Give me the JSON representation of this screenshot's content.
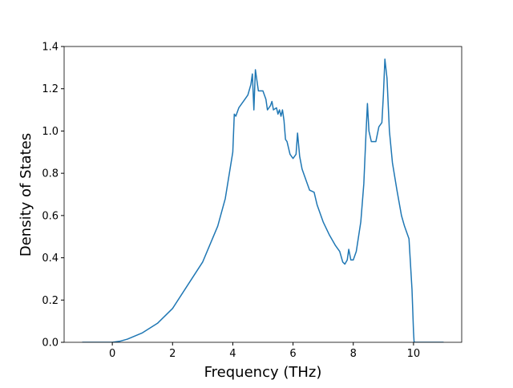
{
  "chart_data": {
    "type": "line",
    "xlabel": "Frequency (THz)",
    "ylabel": "Density of States",
    "xlim": [
      -1.6,
      11.6
    ],
    "ylim": [
      0,
      1.4
    ],
    "xticks": [
      0,
      2,
      4,
      6,
      8,
      10
    ],
    "yticks": [
      {
        "value": 0,
        "label": "0.0"
      },
      {
        "value": 0.2,
        "label": "0.2"
      },
      {
        "value": 0.4,
        "label": "0.4"
      },
      {
        "value": 0.6,
        "label": "0.6"
      },
      {
        "value": 0.8,
        "label": "0.8"
      },
      {
        "value": 1.0,
        "label": "1.0"
      },
      {
        "value": 1.2,
        "label": "1.2"
      },
      {
        "value": 1.4,
        "label": "1.4"
      }
    ],
    "x": [
      -1,
      0,
      0.25,
      0.5,
      1,
      1.5,
      2,
      2.5,
      3,
      3.5,
      3.75,
      4.0,
      4.05,
      4.1,
      4.2,
      4.35,
      4.5,
      4.6,
      4.65,
      4.7,
      4.75,
      4.85,
      5.0,
      5.1,
      5.15,
      5.25,
      5.3,
      5.35,
      5.45,
      5.5,
      5.55,
      5.6,
      5.65,
      5.7,
      5.75,
      5.8,
      5.9,
      6.0,
      6.1,
      6.15,
      6.22,
      6.3,
      6.45,
      6.55,
      6.7,
      6.8,
      7.0,
      7.2,
      7.4,
      7.55,
      7.65,
      7.72,
      7.8,
      7.85,
      7.92,
      8.0,
      8.1,
      8.25,
      8.35,
      8.42,
      8.47,
      8.52,
      8.6,
      8.75,
      8.85,
      8.95,
      9.0,
      9.05,
      9.12,
      9.2,
      9.3,
      9.45,
      9.6,
      9.7,
      9.85,
      9.9,
      9.95,
      10.0,
      10.02,
      11
    ],
    "series": [
      {
        "color": "#1f77b4",
        "values": [
          0,
          0,
          0.005,
          0.015,
          0.045,
          0.09,
          0.16,
          0.27,
          0.38,
          0.55,
          0.68,
          0.9,
          1.08,
          1.07,
          1.11,
          1.14,
          1.17,
          1.22,
          1.27,
          1.1,
          1.29,
          1.19,
          1.19,
          1.15,
          1.1,
          1.12,
          1.14,
          1.1,
          1.11,
          1.08,
          1.1,
          1.07,
          1.1,
          1.05,
          0.96,
          0.95,
          0.89,
          0.87,
          0.89,
          0.99,
          0.88,
          0.82,
          0.76,
          0.72,
          0.71,
          0.65,
          0.57,
          0.51,
          0.46,
          0.43,
          0.38,
          0.37,
          0.39,
          0.44,
          0.39,
          0.39,
          0.43,
          0.57,
          0.75,
          0.98,
          1.13,
          1.0,
          0.95,
          0.95,
          1.02,
          1.04,
          1.17,
          1.34,
          1.25,
          1.0,
          0.85,
          0.72,
          0.6,
          0.55,
          0.49,
          0.37,
          0.25,
          0.05,
          0,
          0
        ]
      }
    ]
  }
}
